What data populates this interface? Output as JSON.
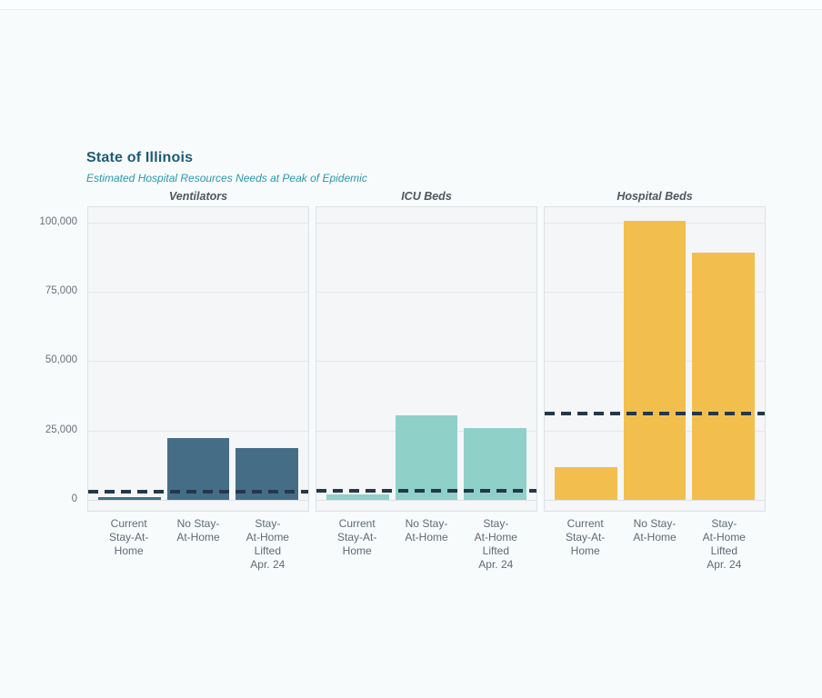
{
  "header": {
    "title": "State of Illinois",
    "subtitle": "Estimated Hospital Resources Needs at Peak of Epidemic"
  },
  "chart_data": {
    "type": "bar",
    "title": "State of Illinois",
    "subtitle": "Estimated Hospital Resources Needs at Peak of Epidemic",
    "categories": [
      "Current\nStay-At-\nHome",
      "No Stay-\nAt-Home",
      "Stay-\nAt-Home\nLifted\nApr. 24"
    ],
    "y_tick_labels": [
      "0",
      "25,000",
      "50,000",
      "75,000",
      "100,000"
    ],
    "y_tick_values": [
      0,
      25000,
      50000,
      75000,
      100000
    ],
    "ylim": [
      0,
      105500
    ],
    "grid": true,
    "legend": "none",
    "capacity_line_color": "#24384a",
    "panels": [
      {
        "title": "Ventilators",
        "bar_color": "#456e86",
        "values": [
          1100,
          22300,
          18800
        ],
        "capacity_line": 3000
      },
      {
        "title": "ICU Beds",
        "bar_color": "#8fd0c8",
        "values": [
          2000,
          30500,
          25900
        ],
        "capacity_line": 3300
      },
      {
        "title": "Hospital Beds",
        "bar_color": "#f2bf4f",
        "values": [
          11800,
          100600,
          89200
        ],
        "capacity_line": 31100
      }
    ]
  }
}
